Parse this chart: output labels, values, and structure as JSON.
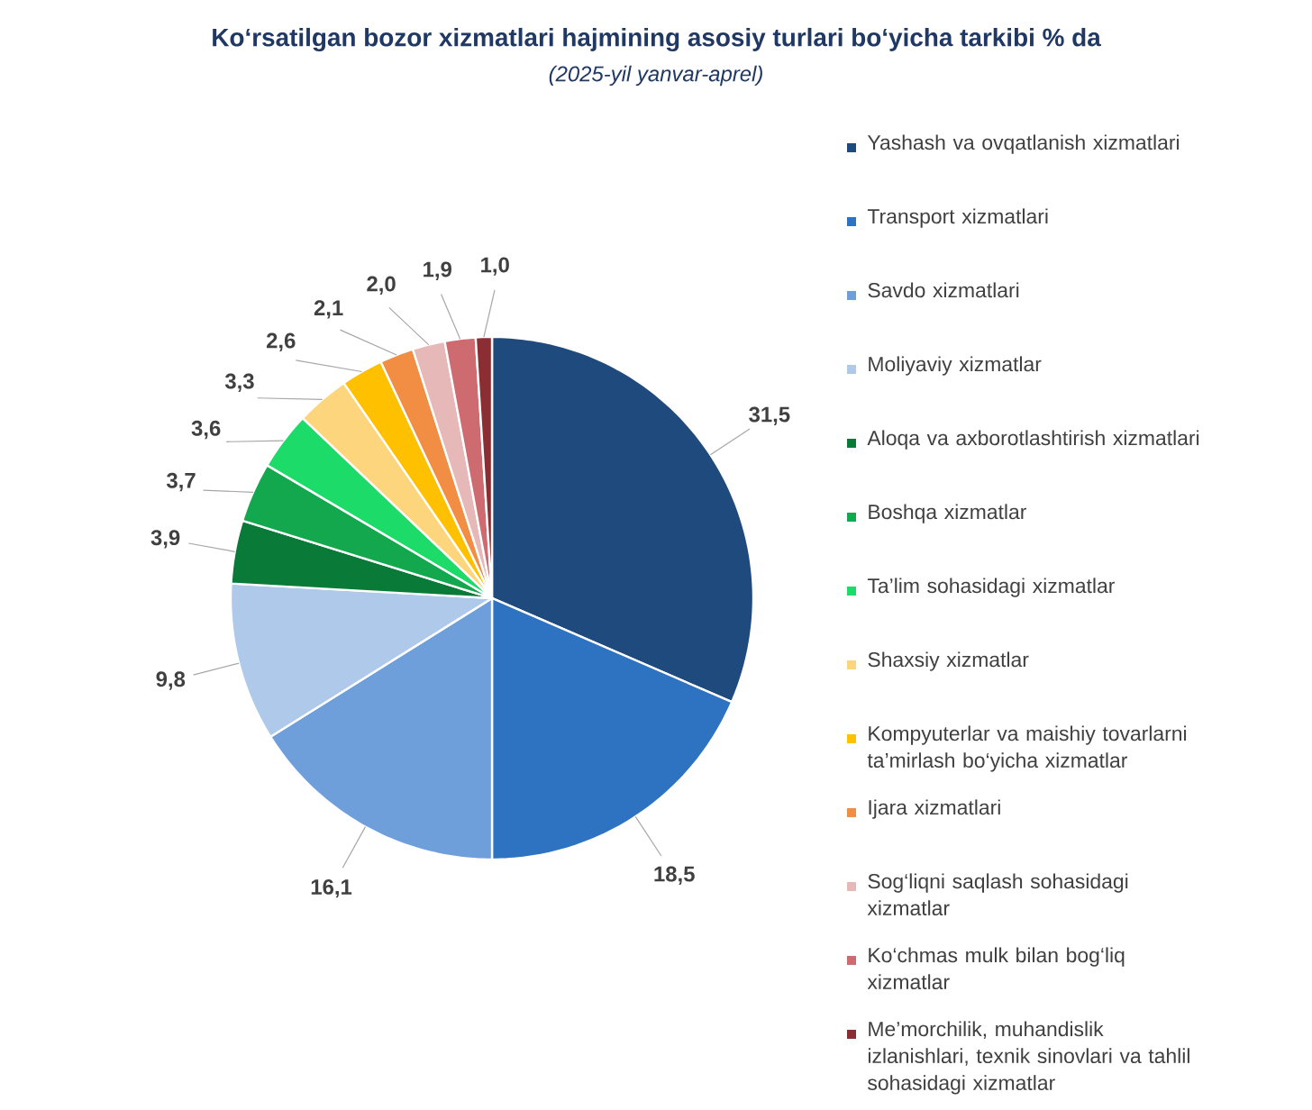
{
  "chart_data": {
    "type": "pie",
    "title": "Ko‘rsatilgan bozor xizmatlari hajmining asosiy turlari bo‘yicha tarkibi % da",
    "subtitle": "(2025-yil yanvar-aprel)",
    "categories": [
      "Yashash va ovqatlanish xizmatlari",
      "Transport xizmatlari",
      "Savdo xizmatlari",
      "Moliyaviy xizmatlar",
      "Aloqa va axborotlashtirish xizmatlari",
      "Boshqa xizmatlar",
      "Ta’lim sohasidagi xizmatlar",
      "Shaxsiy xizmatlar",
      "Kompyuterlar va maishiy tovarlarni ta’mirlash bo‘yicha xizmatlar",
      "Ijara xizmatlari",
      "Sog‘liqni saqlash sohasidagi xizmatlar",
      "Ko‘chmas mulk bilan bog‘liq xizmatlar",
      "Me’morchilik, muhandislik izlanishlari, texnik sinovlari va tahlil sohasidagi xizmatlar"
    ],
    "values": [
      31.5,
      18.5,
      16.1,
      9.8,
      3.9,
      3.7,
      3.6,
      3.3,
      2.6,
      2.1,
      2.0,
      1.9,
      1.0
    ],
    "value_labels": [
      "31,5",
      "18,5",
      "16,1",
      "9,8",
      "3,9",
      "3,7",
      "3,6",
      "3,3",
      "2,6",
      "2,1",
      "2,0",
      "1,9",
      "1,0"
    ],
    "colors": [
      "#1f4a7e",
      "#2e72c2",
      "#6f9fdb",
      "#aec9ea",
      "#0a7a38",
      "#13a84e",
      "#1ddb68",
      "#fdd57c",
      "#ffc000",
      "#f28e43",
      "#e6b8b7",
      "#cd6b70",
      "#8b2e33"
    ],
    "legend": "right"
  }
}
